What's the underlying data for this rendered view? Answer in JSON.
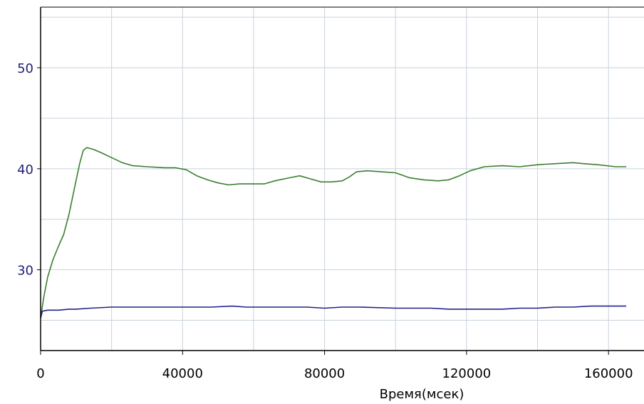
{
  "chart_data": {
    "type": "line",
    "title": "",
    "xlabel": "Время(мсек)",
    "ylabel": "",
    "xlim": [
      0,
      170000
    ],
    "ylim": [
      22,
      56
    ],
    "grid": true,
    "x_ticks": [
      0,
      40000,
      80000,
      120000,
      160000
    ],
    "x_tick_labels": [
      "0",
      "40000",
      "80000",
      "120000",
      "160000"
    ],
    "x_minor_grid": [
      20000,
      60000,
      100000,
      140000
    ],
    "y_ticks": [
      30,
      40,
      50
    ],
    "y_tick_labels": [
      "30",
      "40",
      "50"
    ],
    "y_minor_grid": [
      25,
      35,
      45,
      55
    ],
    "colors": {
      "background": "#ffffff",
      "frame": "#000000",
      "grid": "#c8d2dc",
      "tick_text": "#1f1f7a",
      "axis_title": "#000000"
    },
    "series": [
      {
        "color": "#3c7d32",
        "points": [
          [
            0,
            25.3
          ],
          [
            1000,
            27.5
          ],
          [
            2000,
            29.3
          ],
          [
            3500,
            31.0
          ],
          [
            5000,
            32.3
          ],
          [
            6500,
            33.5
          ],
          [
            8000,
            35.5
          ],
          [
            9500,
            38.0
          ],
          [
            11000,
            40.5
          ],
          [
            12000,
            41.8
          ],
          [
            13000,
            42.1
          ],
          [
            15000,
            41.9
          ],
          [
            17000,
            41.6
          ],
          [
            20000,
            41.1
          ],
          [
            23000,
            40.6
          ],
          [
            26000,
            40.3
          ],
          [
            30000,
            40.2
          ],
          [
            35000,
            40.1
          ],
          [
            38000,
            40.1
          ],
          [
            41000,
            39.9
          ],
          [
            44000,
            39.3
          ],
          [
            47000,
            38.9
          ],
          [
            50000,
            38.6
          ],
          [
            53000,
            38.4
          ],
          [
            56000,
            38.5
          ],
          [
            60000,
            38.5
          ],
          [
            63000,
            38.5
          ],
          [
            66000,
            38.8
          ],
          [
            70000,
            39.1
          ],
          [
            73000,
            39.3
          ],
          [
            76000,
            39.0
          ],
          [
            79000,
            38.7
          ],
          [
            82000,
            38.7
          ],
          [
            85000,
            38.8
          ],
          [
            87000,
            39.2
          ],
          [
            89000,
            39.7
          ],
          [
            92000,
            39.8
          ],
          [
            96000,
            39.7
          ],
          [
            100000,
            39.6
          ],
          [
            104000,
            39.1
          ],
          [
            108000,
            38.9
          ],
          [
            112000,
            38.8
          ],
          [
            115000,
            38.9
          ],
          [
            118000,
            39.3
          ],
          [
            121000,
            39.8
          ],
          [
            125000,
            40.2
          ],
          [
            130000,
            40.3
          ],
          [
            135000,
            40.2
          ],
          [
            140000,
            40.4
          ],
          [
            145000,
            40.5
          ],
          [
            150000,
            40.6
          ],
          [
            153000,
            40.5
          ],
          [
            157000,
            40.4
          ],
          [
            162000,
            40.2
          ],
          [
            165000,
            40.2
          ]
        ]
      },
      {
        "color": "#22228a",
        "points": [
          [
            0,
            25.2
          ],
          [
            500,
            25.9
          ],
          [
            2000,
            26.0
          ],
          [
            5000,
            26.0
          ],
          [
            8000,
            26.1
          ],
          [
            10000,
            26.1
          ],
          [
            14000,
            26.2
          ],
          [
            20000,
            26.3
          ],
          [
            25000,
            26.3
          ],
          [
            30000,
            26.3
          ],
          [
            40000,
            26.3
          ],
          [
            48000,
            26.3
          ],
          [
            54000,
            26.4
          ],
          [
            58000,
            26.3
          ],
          [
            65000,
            26.3
          ],
          [
            75000,
            26.3
          ],
          [
            80000,
            26.2
          ],
          [
            85000,
            26.3
          ],
          [
            90000,
            26.3
          ],
          [
            100000,
            26.2
          ],
          [
            110000,
            26.2
          ],
          [
            115000,
            26.1
          ],
          [
            120000,
            26.1
          ],
          [
            125000,
            26.1
          ],
          [
            130000,
            26.1
          ],
          [
            135000,
            26.2
          ],
          [
            140000,
            26.2
          ],
          [
            145000,
            26.3
          ],
          [
            150000,
            26.3
          ],
          [
            155000,
            26.4
          ],
          [
            160000,
            26.4
          ],
          [
            165000,
            26.4
          ]
        ]
      }
    ]
  }
}
